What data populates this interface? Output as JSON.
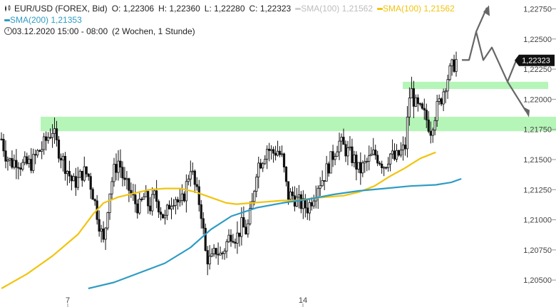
{
  "header": {
    "instrument": "EUR/USD (FOREX, Bid)",
    "open": "O: 1,22306",
    "high": "H: 1,22360",
    "low": "L: 1,22280",
    "close": "C: 1,22323",
    "sma100_grey": "SMA(100)",
    "sma100_grey_value": "1,21562",
    "sma100_yellow": "SMA(100)",
    "sma100_yellow_value": "1,21562",
    "sma200": "SMA(200)",
    "sma200_value": "1,21353",
    "timestamp": "03.12.2020 15:00 - 08:00",
    "period": "(2 Wochen, 1 Stunde)",
    "icons": [
      "candlestick-icon",
      "clock-icon"
    ]
  },
  "colors": {
    "candle": "#111111",
    "sma100": "#f1c40f",
    "sma200": "#2e9cc4",
    "zone": "#b6f5b8",
    "arrow": "#666666",
    "price_badge": "#111111"
  },
  "chart_data": {
    "type": "candlestick",
    "title": "",
    "xlabel": "",
    "ylabel": "",
    "x_ticks": [
      "7",
      "14"
    ],
    "y_ticks": [
      "1,22750",
      "1,22500",
      "1,22250",
      "1,22000",
      "1,21750",
      "1,21500",
      "1,21250",
      "1,21000",
      "1,20750",
      "1,20500"
    ],
    "ylim": [
      1.2043,
      1.228
    ],
    "grid": false,
    "current_price": "1,22323",
    "close_path": [
      1.2167,
      1.2152,
      1.2147,
      1.215,
      1.2145,
      1.2146,
      1.2147,
      1.2155,
      1.216,
      1.2168,
      1.2175,
      1.216,
      1.215,
      1.214,
      1.213,
      1.2133,
      1.214,
      1.2137,
      1.212,
      1.21,
      1.208,
      1.212,
      1.214,
      1.215,
      1.213,
      1.2125,
      1.2115,
      1.211,
      1.212,
      1.211,
      1.212,
      1.211,
      1.21,
      1.2115,
      1.212,
      1.211,
      1.2125,
      1.2145,
      1.2125,
      1.211,
      1.207,
      1.2065,
      1.2075,
      1.207,
      1.208,
      1.209,
      1.2085,
      1.2095,
      1.209,
      1.211,
      1.2145,
      1.215,
      1.216,
      1.2155,
      1.2158,
      1.215,
      1.212,
      1.212,
      1.2115,
      1.2112,
      1.211,
      1.212,
      1.213,
      1.2135,
      1.2145,
      1.2155,
      1.2165,
      1.216,
      1.2155,
      1.215,
      1.214,
      1.2145,
      1.215,
      1.2155,
      1.215,
      1.2145,
      1.2155,
      1.215,
      1.2155,
      1.216,
      1.221,
      1.2195,
      1.219,
      1.2185,
      1.2175,
      1.219,
      1.22,
      1.2215,
      1.2225,
      1.2232
    ],
    "series": [
      {
        "name": "SMA(100)",
        "color": "#f1c40f",
        "values": [
          [
            0,
            1.2043
          ],
          [
            5,
            1.2055
          ],
          [
            10,
            1.207
          ],
          [
            15,
            1.2088
          ],
          [
            18,
            1.2105
          ],
          [
            20,
            1.2114
          ],
          [
            23,
            1.2119
          ],
          [
            26,
            1.2122
          ],
          [
            29,
            1.2125
          ],
          [
            32,
            1.2126
          ],
          [
            35,
            1.2126
          ],
          [
            38,
            1.2123
          ],
          [
            40,
            1.212
          ],
          [
            42,
            1.2117
          ],
          [
            44,
            1.2114
          ],
          [
            46,
            1.2113
          ],
          [
            49,
            1.2114
          ],
          [
            52,
            1.2115
          ],
          [
            55,
            1.2116
          ],
          [
            58,
            1.2116
          ],
          [
            61,
            1.2118
          ],
          [
            64,
            1.2119
          ],
          [
            67,
            1.212
          ],
          [
            70,
            1.2123
          ],
          [
            73,
            1.2128
          ],
          [
            76,
            1.2136
          ],
          [
            79,
            1.2143
          ],
          [
            82,
            1.2151
          ],
          [
            85,
            1.2156
          ]
        ]
      },
      {
        "name": "SMA(200)",
        "color": "#2e9cc4",
        "values": [
          [
            17,
            1.2043
          ],
          [
            22,
            1.2048
          ],
          [
            27,
            1.2056
          ],
          [
            32,
            1.2064
          ],
          [
            37,
            1.2077
          ],
          [
            41,
            1.2092
          ],
          [
            45,
            1.2103
          ],
          [
            50,
            1.211
          ],
          [
            55,
            1.2114
          ],
          [
            60,
            1.2117
          ],
          [
            65,
            1.2121
          ],
          [
            70,
            1.2124
          ],
          [
            75,
            1.2126
          ],
          [
            80,
            1.2128
          ],
          [
            85,
            1.2129
          ],
          [
            88,
            1.2131
          ],
          [
            90,
            1.2134
          ]
        ]
      }
    ],
    "zones": [
      {
        "from": 1.21735,
        "to": 1.21855,
        "label": ""
      },
      {
        "from": 1.22085,
        "to": 1.22145,
        "label": ""
      }
    ],
    "scenario_arrows": [
      {
        "direction": "up",
        "to": 1.2277
      },
      {
        "direction": "down",
        "to": 1.2188
      }
    ]
  }
}
